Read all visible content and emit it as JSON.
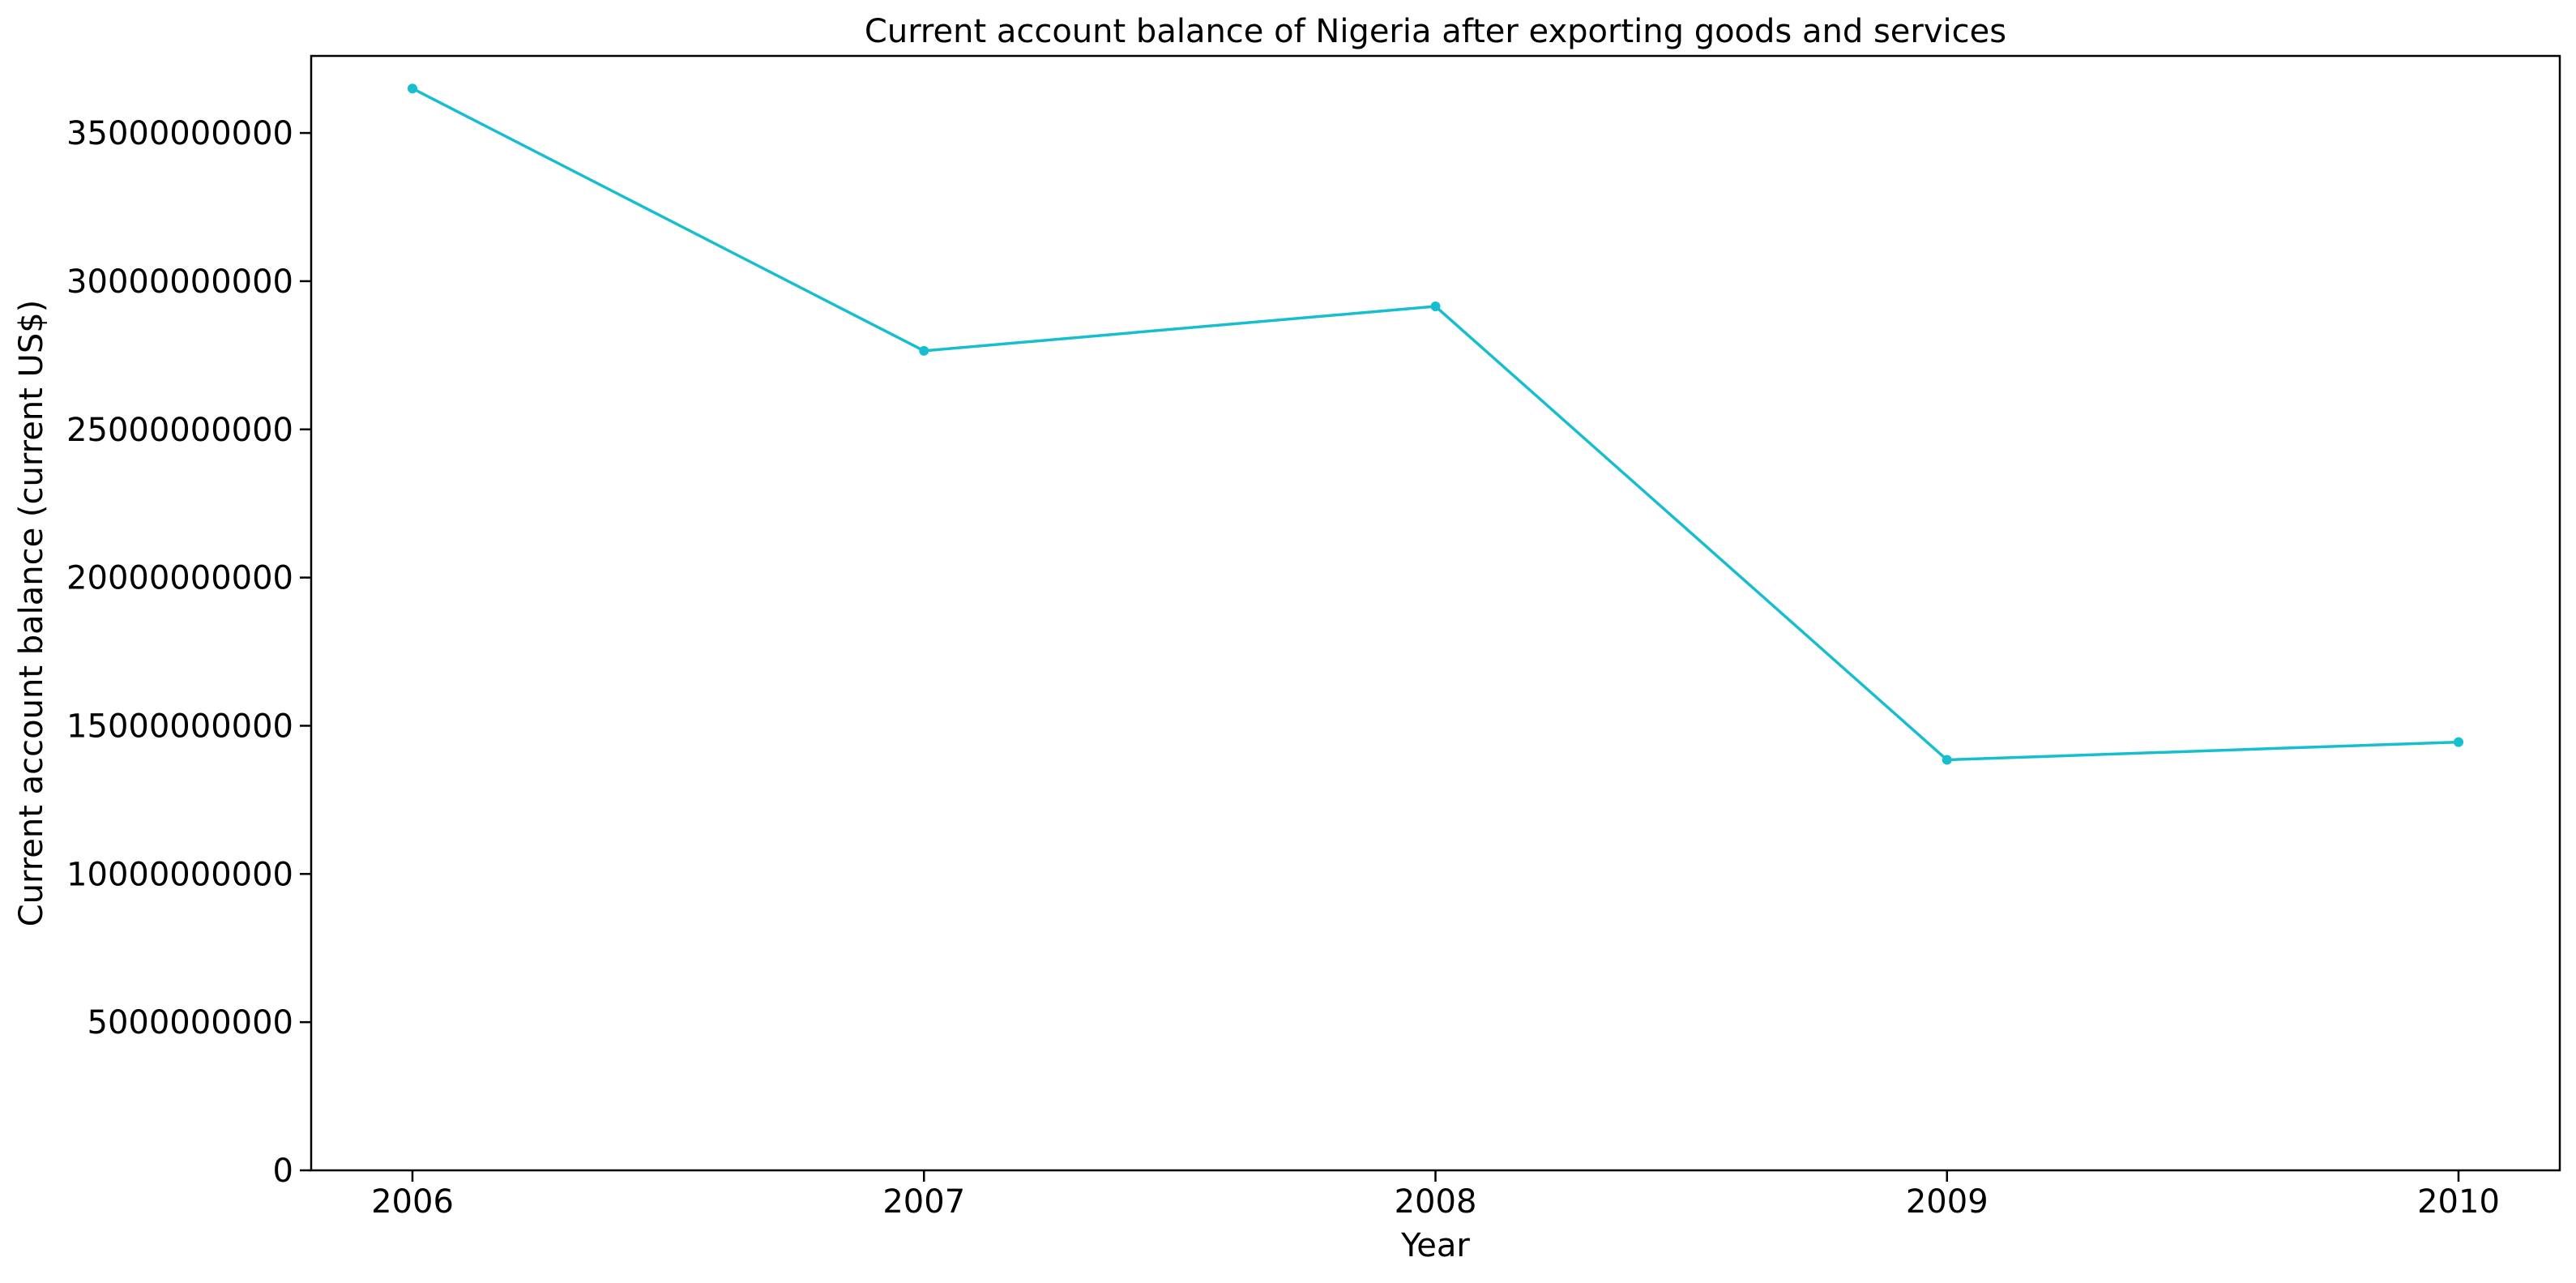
{
  "chart_data": {
    "type": "line",
    "title": "Current account balance of Nigeria after exporting goods and services",
    "xlabel": "Year",
    "ylabel": "Current account balance (current US$)",
    "x": [
      "2006",
      "2007",
      "2008",
      "2009",
      "2010"
    ],
    "series": [
      {
        "values": [
          36500000000,
          27650000000,
          29150000000,
          13850000000,
          14450000000
        ],
        "color": "#17becf",
        "marker": "circle"
      }
    ],
    "ylim": [
      0,
      37600000000
    ],
    "y_ticks": [
      0,
      5000000000,
      10000000000,
      15000000000,
      20000000000,
      25000000000,
      30000000000,
      35000000000
    ],
    "y_tick_labels": [
      "0",
      "5000000000",
      "10000000000",
      "15000000000",
      "20000000000",
      "25000000000",
      "30000000000",
      "35000000000"
    ],
    "grid": false,
    "legend": "none"
  }
}
